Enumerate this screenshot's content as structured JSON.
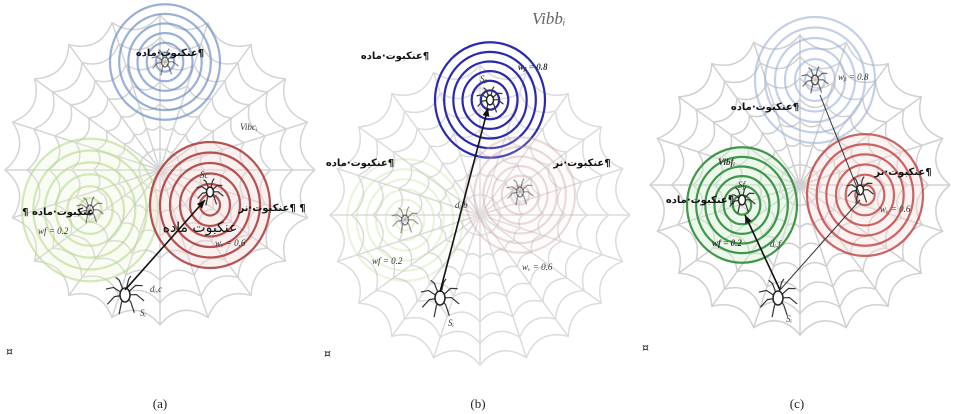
{
  "panels": [
    {
      "caption": "(a)",
      "marker": "¤",
      "labels": [
        "عنکبوت·ماده¶",
        "Vibcᵢ",
        "عنکبوت·نر¶ ¶",
        "¶ عنکبوت·ماده",
        "عنکبوت ماده",
        "wᵥ = 0.6",
        "wf = 0.2",
        "dᵢ,c",
        "Sc",
        "Sᵢ"
      ]
    },
    {
      "caption": "(b)",
      "marker": "¤",
      "labels": [
        "Vibbᵢ",
        "عنکبوت·ماده¶",
        "wᵦ = 0.8",
        "عنکبوت·ماده¶",
        "عنکبوت·نر¶",
        "dᵢ,b",
        "wf = 0.2",
        "wᵥ = 0.6",
        "Sᵦ",
        "Sᵢ"
      ]
    },
    {
      "caption": "(c)",
      "marker": "¤",
      "labels": [
        "عنکبوت·ماده¶",
        "wᵦ = 0.8",
        "Vibfᵢ",
        "عنکبوت·نر¶",
        "عنکبوت·ماده¶",
        "wf = 0.2",
        "dᵢ,f",
        "wᵥ = 0.6",
        "Sf",
        "Sᵢ"
      ]
    }
  ]
}
